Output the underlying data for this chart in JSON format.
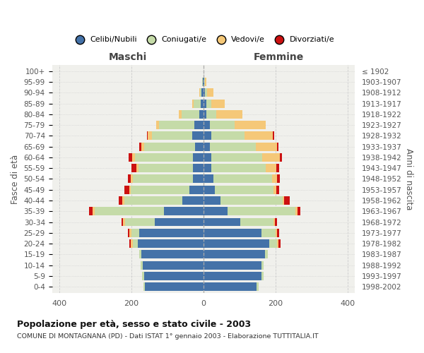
{
  "age_groups": [
    "0-4",
    "5-9",
    "10-14",
    "15-19",
    "20-24",
    "25-29",
    "30-34",
    "35-39",
    "40-44",
    "45-49",
    "50-54",
    "55-59",
    "60-64",
    "65-69",
    "70-74",
    "75-79",
    "80-84",
    "85-89",
    "90-94",
    "95-99",
    "100+"
  ],
  "birth_years": [
    "1998-2002",
    "1993-1997",
    "1988-1992",
    "1983-1987",
    "1978-1982",
    "1973-1977",
    "1968-1972",
    "1963-1967",
    "1958-1962",
    "1953-1957",
    "1948-1952",
    "1943-1947",
    "1938-1942",
    "1933-1937",
    "1928-1932",
    "1923-1927",
    "1918-1922",
    "1913-1917",
    "1908-1912",
    "1903-1907",
    "≤ 1902"
  ],
  "maschi": {
    "celibi": [
      162,
      165,
      168,
      172,
      182,
      178,
      135,
      110,
      58,
      38,
      28,
      28,
      28,
      22,
      30,
      25,
      12,
      8,
      5,
      2,
      0
    ],
    "coniugati": [
      5,
      5,
      5,
      5,
      14,
      22,
      82,
      192,
      162,
      163,
      168,
      152,
      162,
      142,
      112,
      98,
      48,
      18,
      4,
      2,
      0
    ],
    "vedovi": [
      0,
      0,
      0,
      0,
      5,
      5,
      5,
      5,
      5,
      5,
      5,
      5,
      8,
      8,
      12,
      8,
      8,
      5,
      2,
      0,
      0
    ],
    "divorziati": [
      0,
      0,
      0,
      0,
      5,
      5,
      5,
      10,
      9,
      14,
      9,
      14,
      10,
      5,
      2,
      0,
      0,
      0,
      0,
      0,
      0
    ]
  },
  "femmine": {
    "nubili": [
      148,
      162,
      162,
      172,
      182,
      162,
      102,
      68,
      48,
      32,
      28,
      22,
      22,
      18,
      22,
      18,
      8,
      8,
      5,
      2,
      0
    ],
    "coniugate": [
      5,
      5,
      5,
      8,
      22,
      38,
      92,
      188,
      172,
      162,
      162,
      152,
      142,
      128,
      92,
      68,
      28,
      14,
      5,
      2,
      0
    ],
    "vedove": [
      0,
      0,
      0,
      0,
      5,
      5,
      5,
      5,
      5,
      8,
      14,
      28,
      48,
      58,
      78,
      88,
      72,
      38,
      18,
      4,
      0
    ],
    "divorziate": [
      0,
      0,
      0,
      0,
      5,
      5,
      5,
      9,
      14,
      9,
      9,
      9,
      7,
      4,
      4,
      0,
      0,
      0,
      0,
      0,
      0
    ]
  },
  "colors": {
    "celibi": "#4472a8",
    "coniugati": "#c5dba8",
    "vedovi": "#f5c878",
    "divorziati": "#cc1111"
  },
  "xlim": 420,
  "title": "Popolazione per età, sesso e stato civile - 2003",
  "subtitle": "COMUNE DI MONTAGNANA (PD) - Dati ISTAT 1° gennaio 2003 - Elaborazione TUTTITALIA.IT",
  "ylabel": "Fasce di età",
  "ylabel_right": "Anni di nascita",
  "xlabel_left": "Maschi",
  "xlabel_right": "Femmine",
  "legend_labels": [
    "Celibi/Nubili",
    "Coniugati/e",
    "Vedovi/e",
    "Divorziati/e"
  ],
  "bg_color": "#f0f0ec",
  "maschi_color": "#444444",
  "femmine_color": "#444444"
}
